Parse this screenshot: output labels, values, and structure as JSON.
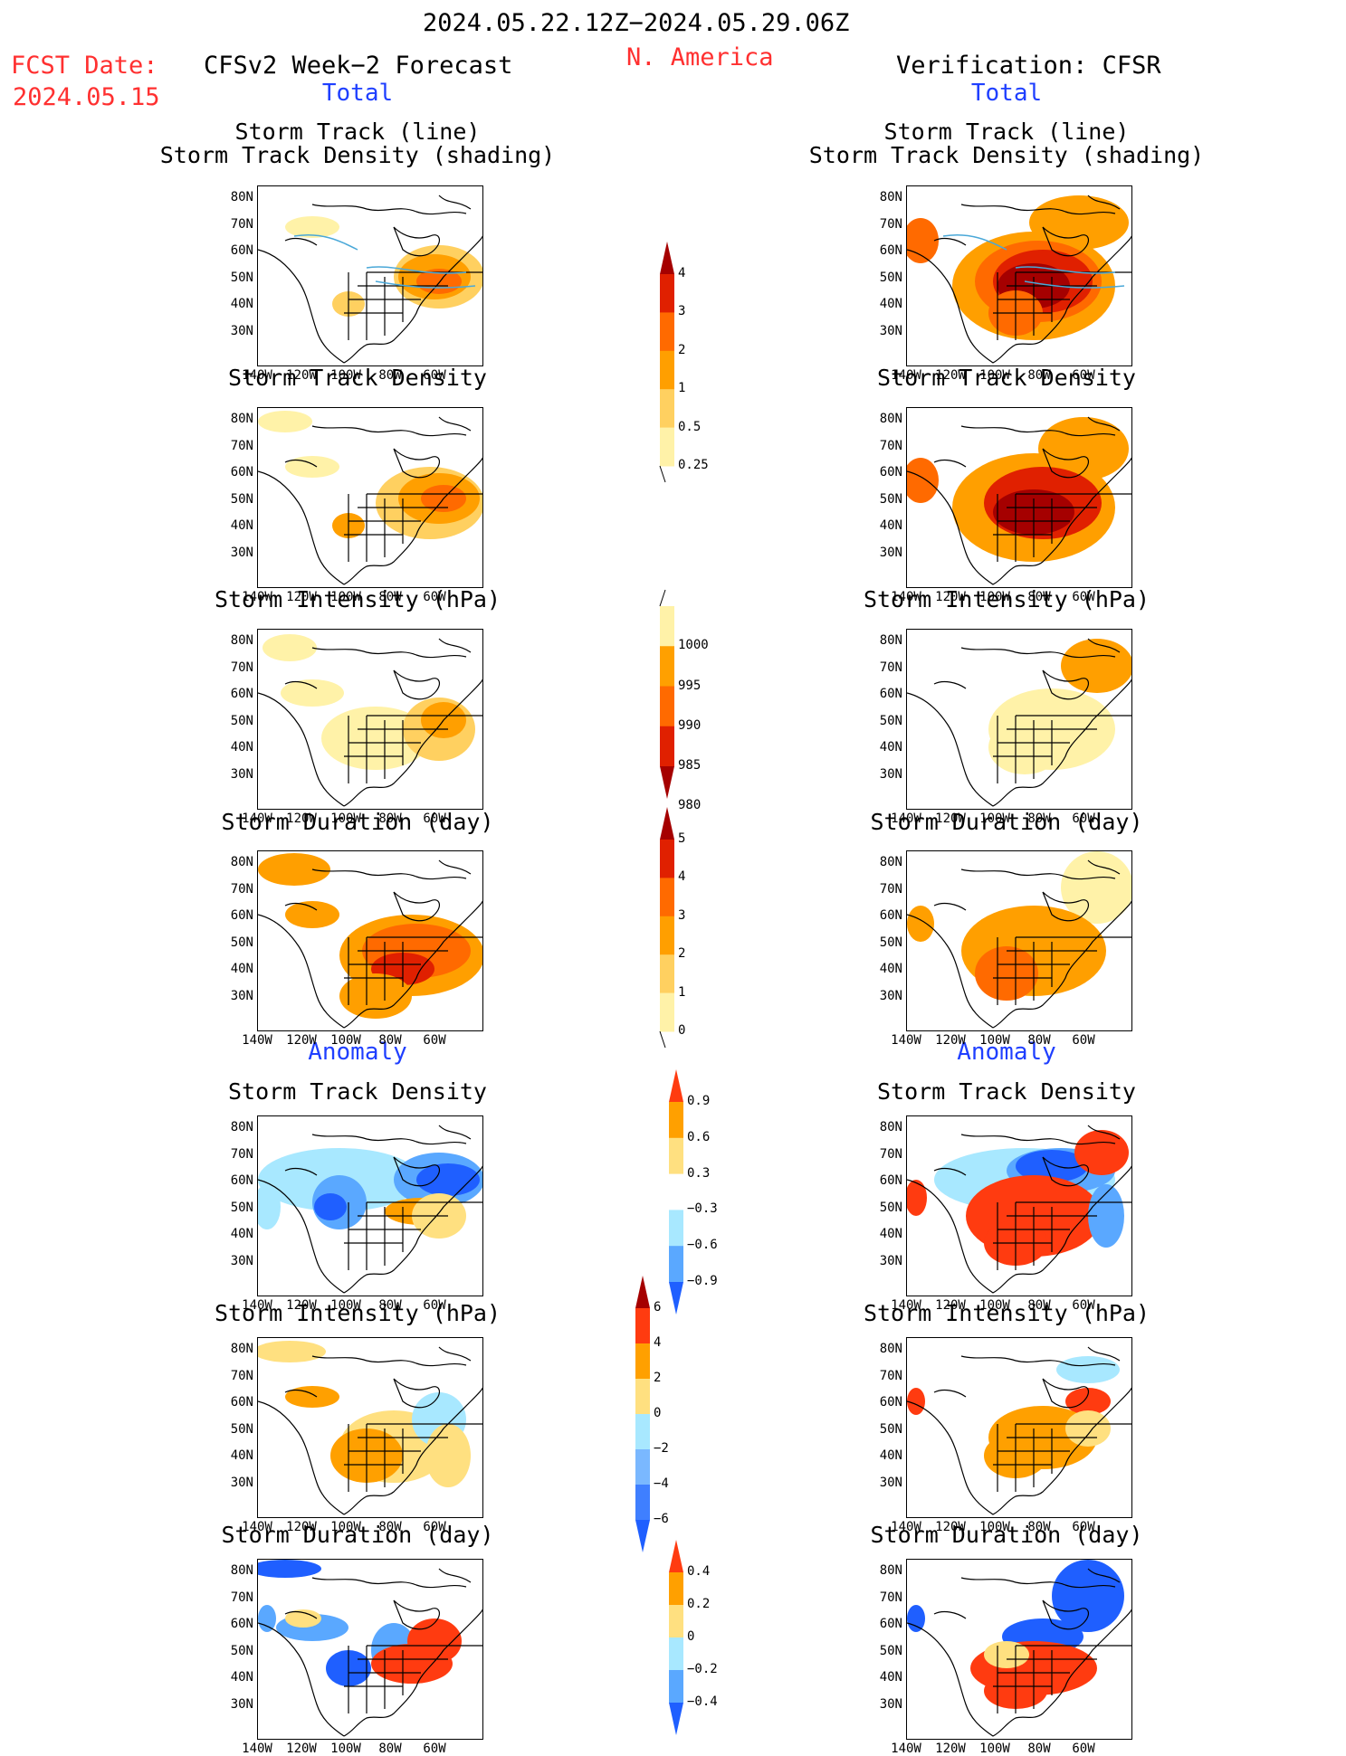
{
  "header": {
    "period": "2024.05.22.12Z−2024.05.29.06Z",
    "region": "N. America",
    "fcst_label": "FCST Date:",
    "fcst_date": "2024.05.15",
    "left_title": "CFSv2 Week−2 Forecast",
    "right_title": "Verification: CFSR",
    "total_label": "Total",
    "anomaly_label": "Anomaly"
  },
  "panel_titles": {
    "track_line": "Storm Track (line)",
    "track_shading": "Storm Track Density (shading)",
    "density": "Storm Track Density",
    "intensity": "Storm Intensity (hPa)",
    "duration": "Storm Duration (day)"
  },
  "axes": {
    "lat_ticks": [
      "80N",
      "70N",
      "60N",
      "50N",
      "40N",
      "30N"
    ],
    "lon_ticks": [
      "140W",
      "120W",
      "100W",
      "80W",
      "60W"
    ]
  },
  "colorbars": {
    "density_total": {
      "labels": [
        "4",
        "3",
        "2",
        "1",
        "0.5",
        "0.25"
      ],
      "colors": [
        "#a50000",
        "#e02000",
        "#ff6a00",
        "#ff9f00",
        "#ffd060",
        "#fff2a8"
      ]
    },
    "intensity_total": {
      "labels": [
        "1000",
        "995",
        "990",
        "985",
        "980"
      ],
      "colors": [
        "#fff2a8",
        "#ffa000",
        "#ff6a00",
        "#e02000",
        "#a50000"
      ]
    },
    "duration_total": {
      "labels": [
        "5",
        "4",
        "3",
        "2",
        "1",
        "0"
      ],
      "colors": [
        "#a50000",
        "#e02000",
        "#ff6a00",
        "#ff9f00",
        "#ffd060",
        "#fff2a8"
      ]
    },
    "density_anom": {
      "labels": [
        "0.9",
        "0.6",
        "0.3",
        "−0.3",
        "−0.6",
        "−0.9"
      ],
      "colors": [
        "#ff3b10",
        "#ffa000",
        "#ffe080",
        "#ffffff",
        "#a8e8ff",
        "#5aa8ff",
        "#1f5fff"
      ]
    },
    "intensity_anom": {
      "labels": [
        "6",
        "4",
        "2",
        "0",
        "−2",
        "−4",
        "−6"
      ],
      "colors": [
        "#a50000",
        "#ff3b10",
        "#ffa000",
        "#ffe080",
        "#a8e8ff",
        "#7ab8ff",
        "#3f7fff",
        "#1f5fff"
      ]
    },
    "duration_anom": {
      "labels": [
        "0.4",
        "0.2",
        "0",
        "−0.2",
        "−0.4"
      ],
      "colors": [
        "#ff3b10",
        "#ffa000",
        "#ffe080",
        "#a8e8ff",
        "#5aa8ff",
        "#1f5fff"
      ]
    }
  },
  "colors": {
    "title_red": "#ff3030",
    "label_blue": "#1f3fff",
    "track_line": "#4aa8d8"
  }
}
